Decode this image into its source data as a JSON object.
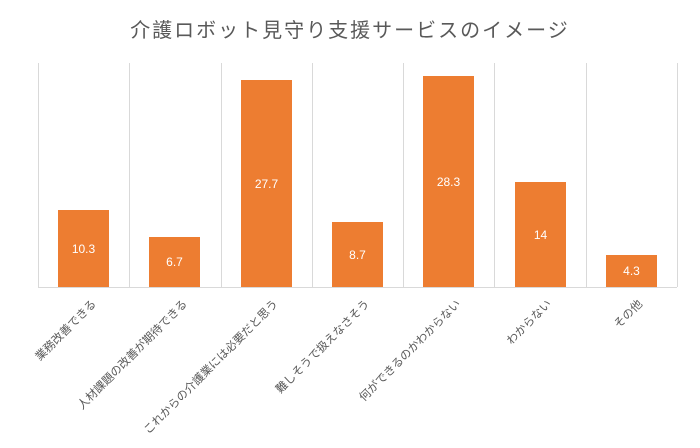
{
  "chart_data": {
    "type": "bar",
    "title": "介護ロボット見守り支援サービスのイメージ",
    "categories": [
      "業務改善できる",
      "人材課題の改善が期待できる",
      "これからの介護業には必要だと思う",
      "難しそうで扱えなさそう",
      "何ができるのかわからない",
      "わからない",
      "その他"
    ],
    "values": [
      10.3,
      6.7,
      27.7,
      8.7,
      28.3,
      14,
      4.3
    ],
    "value_labels": [
      "10.3",
      "6.7",
      "27.7",
      "8.7",
      "28.3",
      "14",
      "4.3"
    ],
    "xlabel": "",
    "ylabel": "",
    "ylim": [
      0,
      30
    ],
    "grid": "vertical category separators",
    "legend": "none",
    "bar_color": "#ed7d31",
    "data_labels": "inside center, white"
  }
}
